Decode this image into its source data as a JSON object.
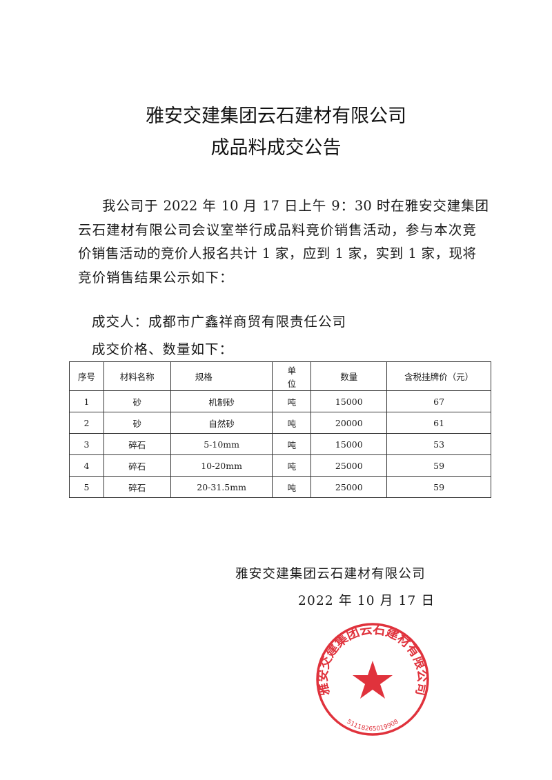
{
  "title": {
    "line1": "雅安交建集团云石建材有限公司",
    "line2": "成品料成交公告"
  },
  "body": {
    "lines": [
      "我公司于 2022 年 10 月 17 日上午 9：30 时在雅安交建集团",
      "云石建材有限公司会议室举行成品料竞价销售活动，参与本次竞",
      "价销售活动的竞价人报名共计 1 家，应到 1 家，实到 1 家，现将",
      "竞价销售结果公示如下："
    ],
    "winner": "成交人：成都市广鑫祥商贸有限责任公司",
    "table_intro": "成交价格、数量如下："
  },
  "table": {
    "headers": [
      "序号",
      "材料名称",
      "规格",
      "单位",
      "数量",
      "含税挂牌价（元）"
    ],
    "unit_header_top": "单",
    "unit_header_bottom": "位",
    "rows": [
      [
        "1",
        "砂",
        "机制砂",
        "吨",
        "15000",
        "67"
      ],
      [
        "2",
        "砂",
        "自然砂",
        "吨",
        "20000",
        "61"
      ],
      [
        "3",
        "碎石",
        "5-10mm",
        "吨",
        "15000",
        "53"
      ],
      [
        "4",
        "碎石",
        "10-20mm",
        "吨",
        "25000",
        "59"
      ],
      [
        "5",
        "碎石",
        "20-31.5mm",
        "吨",
        "25000",
        "59"
      ]
    ]
  },
  "signature": {
    "company": "雅安交建集团云石建材有限公司",
    "date": "2022 年 10 月 17 日"
  },
  "stamp": {
    "text": "雅安交建集团云石建材有限公司",
    "code": "5111826501990​8",
    "color": "#e0323c"
  }
}
